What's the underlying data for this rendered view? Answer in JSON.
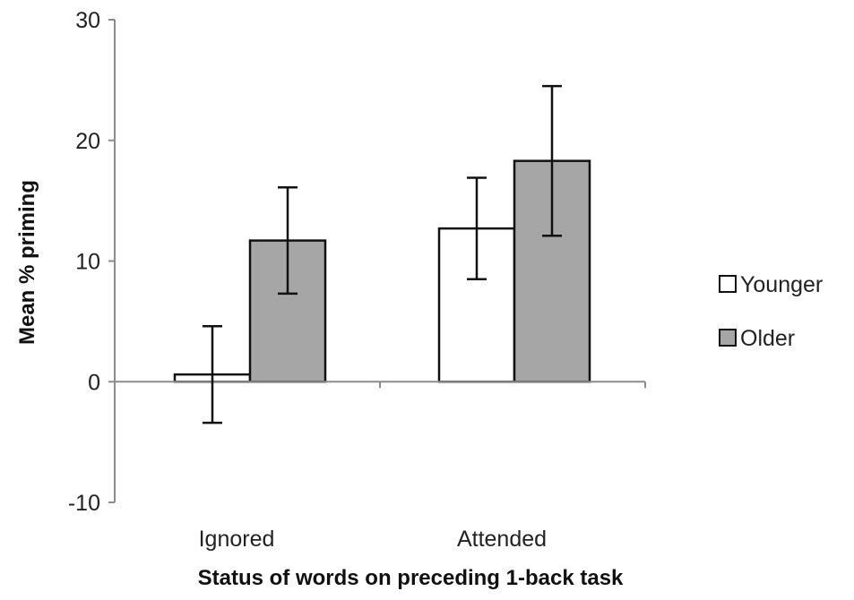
{
  "chart_data": {
    "type": "bar",
    "title": "",
    "xlabel": "Status of words on preceding 1-back task",
    "ylabel": "Mean % priming",
    "ylim": [
      -10,
      30
    ],
    "yticks": [
      -10,
      0,
      10,
      20,
      30
    ],
    "categories": [
      "Ignored",
      "Attended"
    ],
    "series": [
      {
        "name": "Younger",
        "values": [
          0.6,
          12.7
        ],
        "error": [
          4.0,
          4.2
        ],
        "color": "#ffffff"
      },
      {
        "name": "Older",
        "values": [
          11.7,
          18.3
        ],
        "error": [
          4.4,
          6.2
        ],
        "color": "#a6a6a6"
      }
    ],
    "legend_position": "right",
    "grid": false
  }
}
